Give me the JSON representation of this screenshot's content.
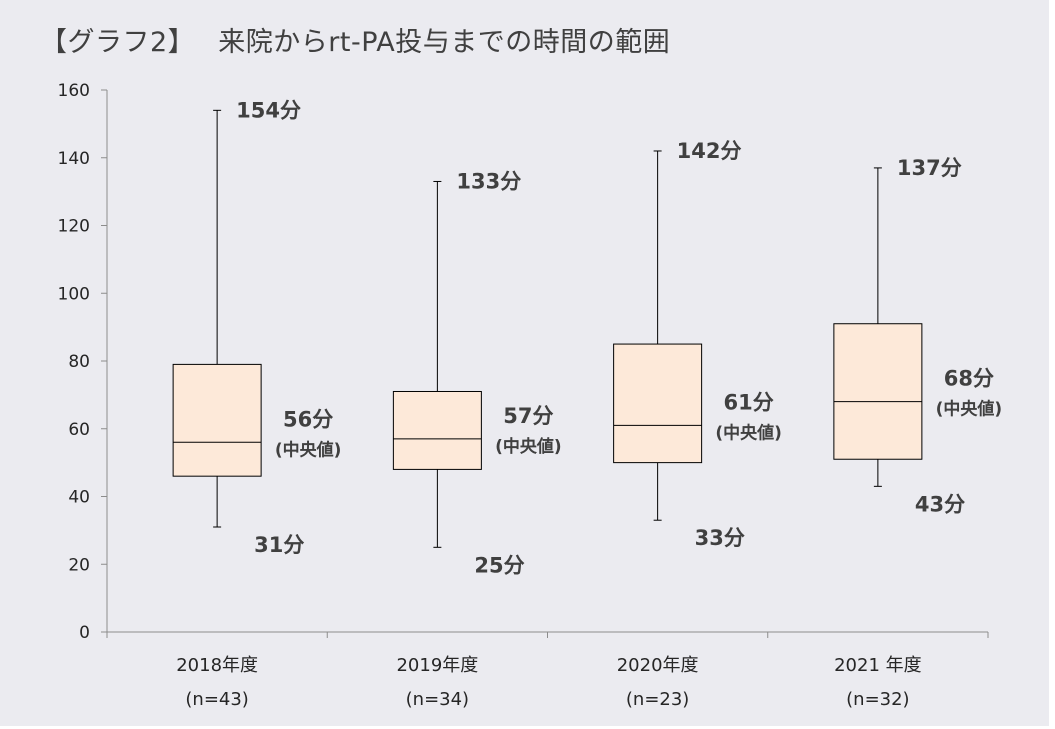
{
  "title": "【グラフ2】　 来院からrt-PA投与までの時間の範囲",
  "chart_data": {
    "type": "box",
    "title": "【グラフ2】　 来院からrt-PA投与までの時間の範囲",
    "ylim": [
      0,
      160
    ],
    "yticks": [
      0,
      20,
      40,
      60,
      80,
      100,
      120,
      140,
      160
    ],
    "grid": false,
    "categories": [
      {
        "year": "2018年度",
        "n": "(n=43)"
      },
      {
        "year": "2019年度",
        "n": "(n=34)"
      },
      {
        "year": "2020年度",
        "n": "(n=23)"
      },
      {
        "year": "2021 年度",
        "n": "(n=32)"
      }
    ],
    "series": [
      {
        "min": 31,
        "q1": 46,
        "median": 56,
        "q3": 79,
        "max": 154,
        "max_label": "154分",
        "median_label": "56分",
        "median_note": "(中央値)",
        "min_label": "31分"
      },
      {
        "min": 25,
        "q1": 48,
        "median": 57,
        "q3": 71,
        "max": 133,
        "max_label": "133分",
        "median_label": "57分",
        "median_note": "(中央値)",
        "min_label": "25分"
      },
      {
        "min": 33,
        "q1": 50,
        "median": 61,
        "q3": 85,
        "max": 142,
        "max_label": "142分",
        "median_label": "61分",
        "median_note": "(中央値)",
        "min_label": "33分"
      },
      {
        "min": 43,
        "q1": 51,
        "median": 68,
        "q3": 91,
        "max": 137,
        "max_label": "137分",
        "median_label": "68分",
        "median_note": "(中央値)",
        "min_label": "43分"
      }
    ],
    "box_fill": "#fde9d9",
    "line_color": "#000000",
    "axis_color": "#8c8c8c"
  }
}
